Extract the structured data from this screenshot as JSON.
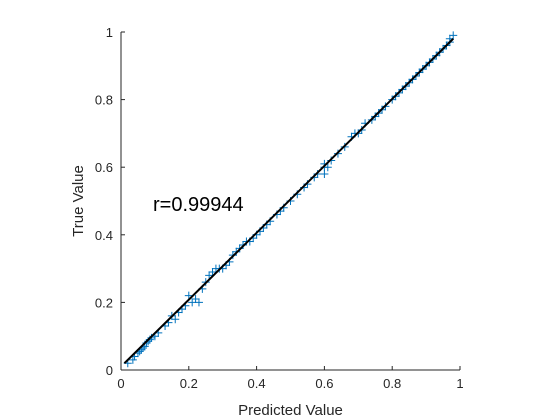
{
  "chart_data": {
    "type": "scatter",
    "title": "",
    "xlabel": "Predicted Value",
    "ylabel": "True Value",
    "xlim": [
      0,
      1
    ],
    "ylim": [
      0,
      1
    ],
    "xticks": [
      "0",
      "0.2",
      "0.4",
      "0.6",
      "0.8",
      "1"
    ],
    "yticks": [
      "0",
      "0.2",
      "0.4",
      "0.6",
      "0.8",
      "1"
    ],
    "annotation": "r=0.99944",
    "grid": false,
    "marker": "plus",
    "colors": {
      "points": "#0072BD",
      "fit_line": "#000000",
      "axes": "#262626"
    },
    "fit_line": {
      "x": [
        0.01,
        0.98
      ],
      "y": [
        0.02,
        0.98
      ]
    },
    "x": [
      0.02,
      0.035,
      0.04,
      0.05,
      0.055,
      0.06,
      0.065,
      0.07,
      0.075,
      0.08,
      0.085,
      0.09,
      0.1,
      0.11,
      0.13,
      0.14,
      0.15,
      0.16,
      0.17,
      0.18,
      0.19,
      0.2,
      0.21,
      0.22,
      0.23,
      0.24,
      0.25,
      0.26,
      0.27,
      0.28,
      0.29,
      0.3,
      0.31,
      0.32,
      0.33,
      0.34,
      0.35,
      0.36,
      0.37,
      0.38,
      0.39,
      0.4,
      0.41,
      0.42,
      0.43,
      0.44,
      0.46,
      0.47,
      0.48,
      0.5,
      0.52,
      0.54,
      0.55,
      0.57,
      0.58,
      0.6,
      0.6,
      0.6,
      0.61,
      0.62,
      0.64,
      0.66,
      0.68,
      0.69,
      0.7,
      0.71,
      0.72,
      0.74,
      0.75,
      0.76,
      0.77,
      0.78,
      0.8,
      0.81,
      0.82,
      0.83,
      0.84,
      0.85,
      0.86,
      0.87,
      0.88,
      0.89,
      0.9,
      0.91,
      0.92,
      0.93,
      0.94,
      0.95,
      0.96,
      0.97,
      0.97,
      0.98
    ],
    "y": [
      0.02,
      0.03,
      0.04,
      0.05,
      0.055,
      0.06,
      0.065,
      0.07,
      0.08,
      0.085,
      0.09,
      0.095,
      0.1,
      0.11,
      0.13,
      0.14,
      0.16,
      0.15,
      0.17,
      0.18,
      0.19,
      0.22,
      0.2,
      0.21,
      0.2,
      0.24,
      0.26,
      0.28,
      0.29,
      0.3,
      0.3,
      0.3,
      0.31,
      0.32,
      0.34,
      0.35,
      0.36,
      0.37,
      0.38,
      0.38,
      0.39,
      0.4,
      0.41,
      0.42,
      0.43,
      0.44,
      0.46,
      0.47,
      0.48,
      0.5,
      0.52,
      0.54,
      0.55,
      0.57,
      0.58,
      0.6,
      0.58,
      0.61,
      0.6,
      0.62,
      0.64,
      0.66,
      0.69,
      0.7,
      0.7,
      0.71,
      0.73,
      0.74,
      0.75,
      0.76,
      0.77,
      0.78,
      0.8,
      0.81,
      0.82,
      0.83,
      0.84,
      0.85,
      0.86,
      0.87,
      0.88,
      0.89,
      0.9,
      0.91,
      0.92,
      0.93,
      0.94,
      0.95,
      0.96,
      0.97,
      0.98,
      0.99
    ]
  }
}
